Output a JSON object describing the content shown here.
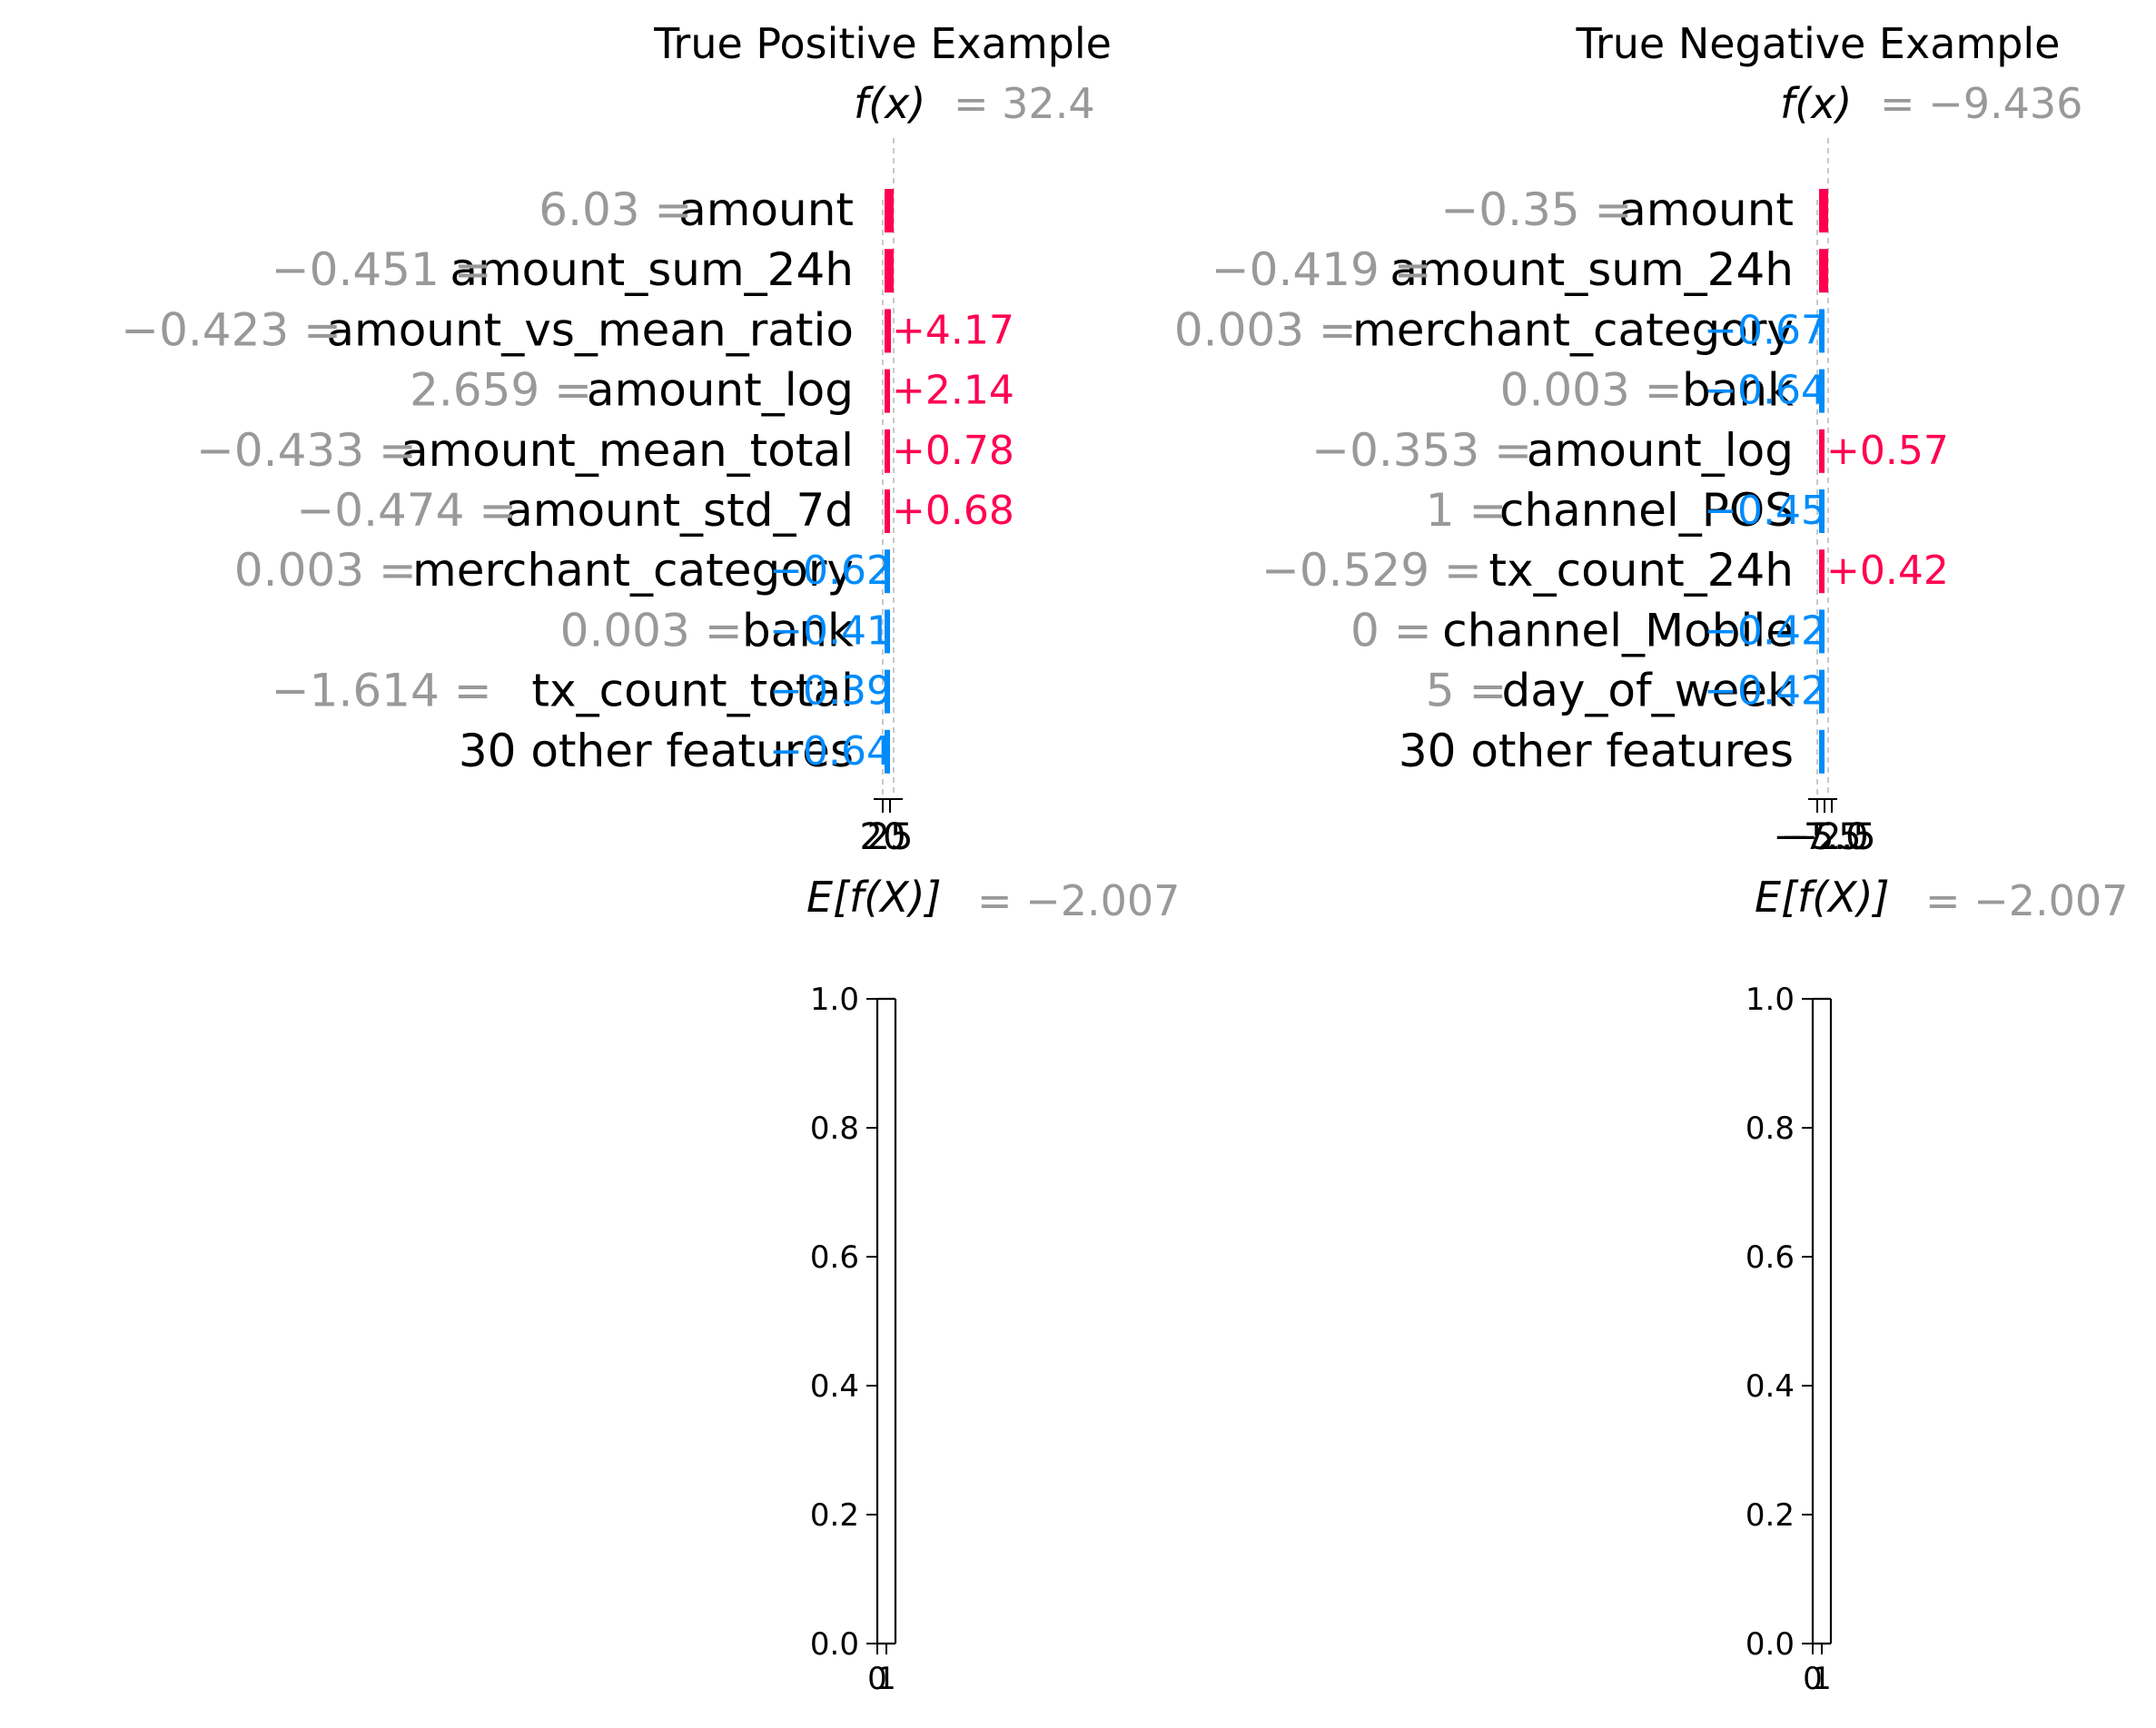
{
  "chart_data": [
    {
      "type": "bar",
      "subtype": "shap-waterfall",
      "title": "True Positive Example",
      "fx_label": "f(x)",
      "fx_value": "= 32.4",
      "ex_label": "E[f(X)]",
      "ex_value": "= −2.007",
      "features": [
        {
          "value": "6.03",
          "name": "amount",
          "contribution": 0.0,
          "label": ""
        },
        {
          "value": "−0.451",
          "name": "amount_sum_24h",
          "contribution": 0.0,
          "label": ""
        },
        {
          "value": "−0.423",
          "name": "amount_vs_mean_ratio",
          "contribution": 4.17,
          "label": "+4.17"
        },
        {
          "value": "2.659",
          "name": "amount_log",
          "contribution": 2.14,
          "label": "+2.14"
        },
        {
          "value": "−0.433",
          "name": "amount_mean_total",
          "contribution": 0.78,
          "label": "+0.78"
        },
        {
          "value": "−0.474",
          "name": "amount_std_7d",
          "contribution": 0.68,
          "label": "+0.68"
        },
        {
          "value": "0.003",
          "name": "merchant_category",
          "contribution": -0.62,
          "label": "−0.62"
        },
        {
          "value": "0.003",
          "name": "bank",
          "contribution": -0.41,
          "label": "−0.41"
        },
        {
          "value": "−1.614",
          "name": "tx_count_total",
          "contribution": -0.39,
          "label": "−0.39"
        },
        {
          "value": "",
          "name": "30 other features",
          "contribution": -0.64,
          "label": "−0.64"
        }
      ],
      "x_ticks": [
        "20",
        "25"
      ]
    },
    {
      "type": "bar",
      "subtype": "shap-waterfall",
      "title": "True Negative Example",
      "fx_label": "f(x)",
      "fx_value": "= −9.436",
      "ex_label": "E[f(X)]",
      "ex_value": "= −2.007",
      "features": [
        {
          "value": "−0.35",
          "name": "amount",
          "contribution": 0.0,
          "label": ""
        },
        {
          "value": "−0.419",
          "name": "amount_sum_24h",
          "contribution": 0.0,
          "label": ""
        },
        {
          "value": "0.003",
          "name": "merchant_category",
          "contribution": -0.67,
          "label": "−0.67"
        },
        {
          "value": "0.003",
          "name": "bank",
          "contribution": -0.64,
          "label": "−0.64"
        },
        {
          "value": "−0.353",
          "name": "amount_log",
          "contribution": 0.57,
          "label": "+0.57"
        },
        {
          "value": "1",
          "name": "channel_POS",
          "contribution": -0.45,
          "label": "−0.45"
        },
        {
          "value": "−0.529",
          "name": "tx_count_24h",
          "contribution": 0.42,
          "label": "+0.42"
        },
        {
          "value": "0",
          "name": "channel_Mobile",
          "contribution": -0.42,
          "label": "−0.42"
        },
        {
          "value": "5",
          "name": "day_of_week",
          "contribution": -0.42,
          "label": "−0.42"
        },
        {
          "value": "",
          "name": "30 other features",
          "contribution": -0.3,
          "label": ""
        }
      ],
      "x_ticks": [
        "−7.5",
        "−5.0",
        "−2.5"
      ]
    },
    {
      "type": "bar",
      "subtype": "empty-axes",
      "yticks": [
        "1.0",
        "0.8",
        "0.6",
        "0.4",
        "0.2",
        "0.0"
      ],
      "ylim": [
        0,
        1
      ],
      "xticks": [
        "0",
        "1"
      ]
    },
    {
      "type": "bar",
      "subtype": "empty-axes",
      "yticks": [
        "1.0",
        "0.8",
        "0.6",
        "0.4",
        "0.2",
        "0.0"
      ],
      "ylim": [
        0,
        1
      ],
      "xticks": [
        "0",
        "1"
      ]
    }
  ],
  "colors": {
    "positive": "#ff0051",
    "negative": "#008bfb",
    "value_gray": "#999999",
    "text": "#000000",
    "axis": "#000000"
  }
}
